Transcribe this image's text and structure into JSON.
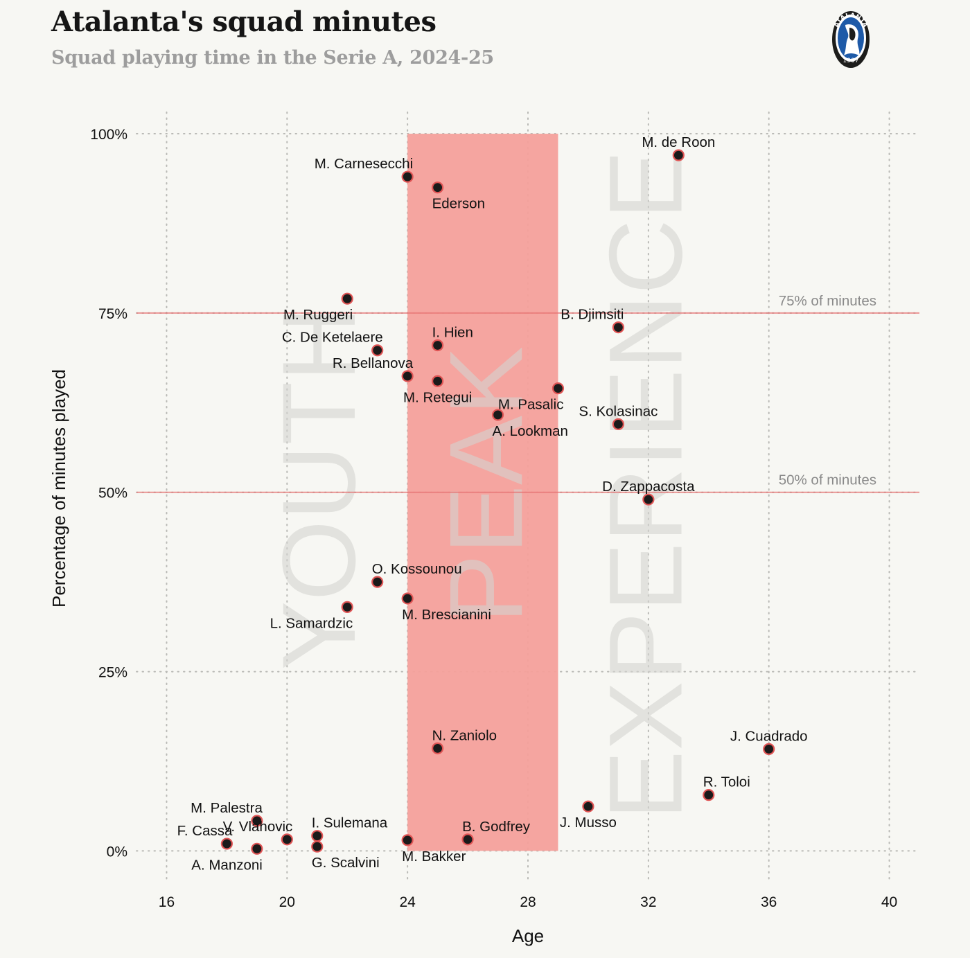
{
  "title": "Atalanta's squad minutes",
  "subtitle": "Squad playing time in the Serie A, 2024-25",
  "logo": {
    "text_top": "ATALANTA",
    "text_bottom": "1907",
    "colors": {
      "ring": "#1d1d1b",
      "field": "#1e5aa8"
    }
  },
  "colors": {
    "accent": "#f08080",
    "peak_band": "#f4a09b",
    "point_fill": "#1a1a1a",
    "point_stroke": "#e05555"
  },
  "chart_data": {
    "type": "scatter",
    "title": "Atalanta's squad minutes",
    "xlabel": "Age",
    "ylabel": "Percentage of minutes played",
    "xlim": [
      15,
      41
    ],
    "ylim": [
      -4.5,
      103
    ],
    "x_ticks": [
      16,
      20,
      24,
      28,
      32,
      36,
      40
    ],
    "y_ticks": [
      0,
      25,
      50,
      75,
      100
    ],
    "y_tick_labels": [
      "0%",
      "25%",
      "50%",
      "75%",
      "100%"
    ],
    "grid": true,
    "reference_lines": [
      {
        "y": 75,
        "label": "75% of minutes"
      },
      {
        "y": 50,
        "label": "50% of minutes"
      }
    ],
    "bands": [
      {
        "x_from": 24,
        "x_to": 29,
        "y_from": 0,
        "y_to": 100,
        "label": "PEAK"
      }
    ],
    "zones": [
      {
        "label": "YOUTH",
        "x_center": 21.05
      },
      {
        "label": "PEAK",
        "x_center": 26.6
      },
      {
        "label": "EXPERIENCE",
        "x_center": 31.9
      }
    ],
    "points": [
      {
        "name": "M. de Roon",
        "x": 33,
        "y": 97,
        "pos": "top"
      },
      {
        "name": "M. Carnesecchi",
        "x": 24,
        "y": 94,
        "pos": "top-left"
      },
      {
        "name": "Ederson",
        "x": 25,
        "y": 92.5,
        "pos": "bottom-right"
      },
      {
        "name": "M. Ruggeri",
        "x": 22,
        "y": 77,
        "pos": "bottom-left"
      },
      {
        "name": "B. Djimsiti",
        "x": 31,
        "y": 73,
        "pos": "top-left"
      },
      {
        "name": "C. De Ketelaere",
        "x": 23,
        "y": 69.8,
        "pos": "top-left"
      },
      {
        "name": "I. Hien",
        "x": 25,
        "y": 70.5,
        "pos": "top-right"
      },
      {
        "name": "R. Bellanova",
        "x": 24,
        "y": 66.2,
        "pos": "top-left"
      },
      {
        "name": "M. Retegui",
        "x": 25,
        "y": 65.5,
        "pos": "bottom"
      },
      {
        "name": "M. Pasalic",
        "x": 29,
        "y": 64.5,
        "pos": "bottom-left"
      },
      {
        "name": "A. Lookman",
        "x": 27,
        "y": 60.8,
        "pos": "bottom-right"
      },
      {
        "name": "S. Kolasinac",
        "x": 31,
        "y": 59.5,
        "pos": "top"
      },
      {
        "name": "D. Zappacosta",
        "x": 32,
        "y": 49,
        "pos": "top"
      },
      {
        "name": "O. Kossounou",
        "x": 23,
        "y": 37.5,
        "pos": "top-right"
      },
      {
        "name": "M. Brescianini",
        "x": 24,
        "y": 35.2,
        "pos": "bottom-right"
      },
      {
        "name": "L. Samardzic",
        "x": 22,
        "y": 34,
        "pos": "bottom-left"
      },
      {
        "name": "N. Zaniolo",
        "x": 25,
        "y": 14.3,
        "pos": "top-right"
      },
      {
        "name": "J. Cuadrado",
        "x": 36,
        "y": 14.2,
        "pos": "top"
      },
      {
        "name": "R. Toloi",
        "x": 34,
        "y": 7.8,
        "pos": "top-right"
      },
      {
        "name": "J. Musso",
        "x": 30,
        "y": 6.2,
        "pos": "bottom"
      },
      {
        "name": "M. Palestra",
        "x": 19,
        "y": 4.2,
        "pos": "top-left"
      },
      {
        "name": "V. Vlahovic",
        "x": 20,
        "y": 1.6,
        "pos": "top-left"
      },
      {
        "name": "I. Sulemana",
        "x": 21,
        "y": 2.1,
        "pos": "top-right"
      },
      {
        "name": "G. Scalvini",
        "x": 21,
        "y": 0.6,
        "pos": "bottom-right"
      },
      {
        "name": "F. Cassa",
        "x": 18,
        "y": 1.0,
        "pos": "top-left"
      },
      {
        "name": "A. Manzoni",
        "x": 19,
        "y": 0.3,
        "pos": "bottom-left"
      },
      {
        "name": "M. Bakker",
        "x": 24,
        "y": 1.5,
        "pos": "bottom-right"
      },
      {
        "name": "B. Godfrey",
        "x": 26,
        "y": 1.6,
        "pos": "top-right"
      }
    ]
  }
}
